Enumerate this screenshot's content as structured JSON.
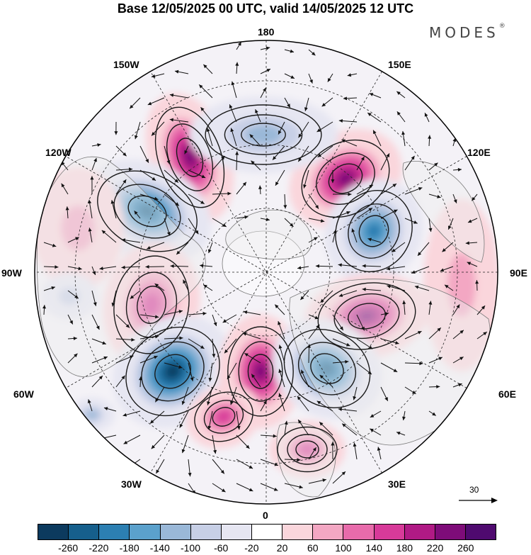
{
  "title": "Base 12/05/2025 00 UTC, valid 14/05/2025 12 UTC",
  "brand": {
    "name": "MODES",
    "mark": "®"
  },
  "longitude_labels": {
    "lon_180": "180",
    "lon_150w": "150W",
    "lon_150e": "150E",
    "lon_120w": "120W",
    "lon_120e": "120E",
    "lon_90w": "90W",
    "lon_90e": "90E",
    "lon_60w": "60W",
    "lon_60e": "60E",
    "lon_30w": "30W",
    "lon_30e": "30E",
    "lon_0": "0"
  },
  "reference_vector": {
    "label": "30"
  },
  "colorbar": {
    "ticks": [
      "-260",
      "-220",
      "-180",
      "-140",
      "-100",
      "-60",
      "-20",
      "20",
      "60",
      "100",
      "140",
      "180",
      "220",
      "260"
    ],
    "colors": [
      "#0c3a5e",
      "#165f8c",
      "#2c7fb2",
      "#5ba1cc",
      "#9ab8d8",
      "#c7cfe6",
      "#e6e6f2",
      "#ffffff",
      "#fad6dc",
      "#f3a7c3",
      "#e86bab",
      "#d73a99",
      "#b01a85",
      "#7e0c79",
      "#4f0a6f"
    ]
  },
  "map": {
    "projection": "north polar stereographic",
    "land_color": "#eeeeee",
    "coast_color": "#777777",
    "anomaly_centers": [
      {
        "name": "pos-150w",
        "sign": "positive",
        "peak": 250
      },
      {
        "name": "pos-130e",
        "sign": "positive",
        "peak": 220
      },
      {
        "name": "neg-165e",
        "sign": "negative",
        "peak": -100
      },
      {
        "name": "neg-125w",
        "sign": "negative",
        "peak": -220
      },
      {
        "name": "neg-105e",
        "sign": "negative",
        "peak": -180
      },
      {
        "name": "pos-95w",
        "sign": "positive",
        "peak": 170
      },
      {
        "name": "pos-75e",
        "sign": "positive",
        "peak": 230
      },
      {
        "name": "neg-60w",
        "sign": "negative",
        "peak": -260
      },
      {
        "name": "pos-20w",
        "sign": "positive",
        "peak": 240
      },
      {
        "name": "neg-40e",
        "sign": "negative",
        "peak": -230
      },
      {
        "name": "pos-45w",
        "sign": "positive",
        "peak": 140
      },
      {
        "name": "pos-10e",
        "sign": "positive",
        "peak": 160
      },
      {
        "name": "pos-105w-edge",
        "sign": "positive",
        "peak": 90
      },
      {
        "name": "neg-80w-edge",
        "sign": "negative",
        "peak": -80
      },
      {
        "name": "neg-65w-edge",
        "sign": "negative",
        "peak": -120
      },
      {
        "name": "pos-95e-edge",
        "sign": "positive",
        "peak": 60
      }
    ]
  }
}
